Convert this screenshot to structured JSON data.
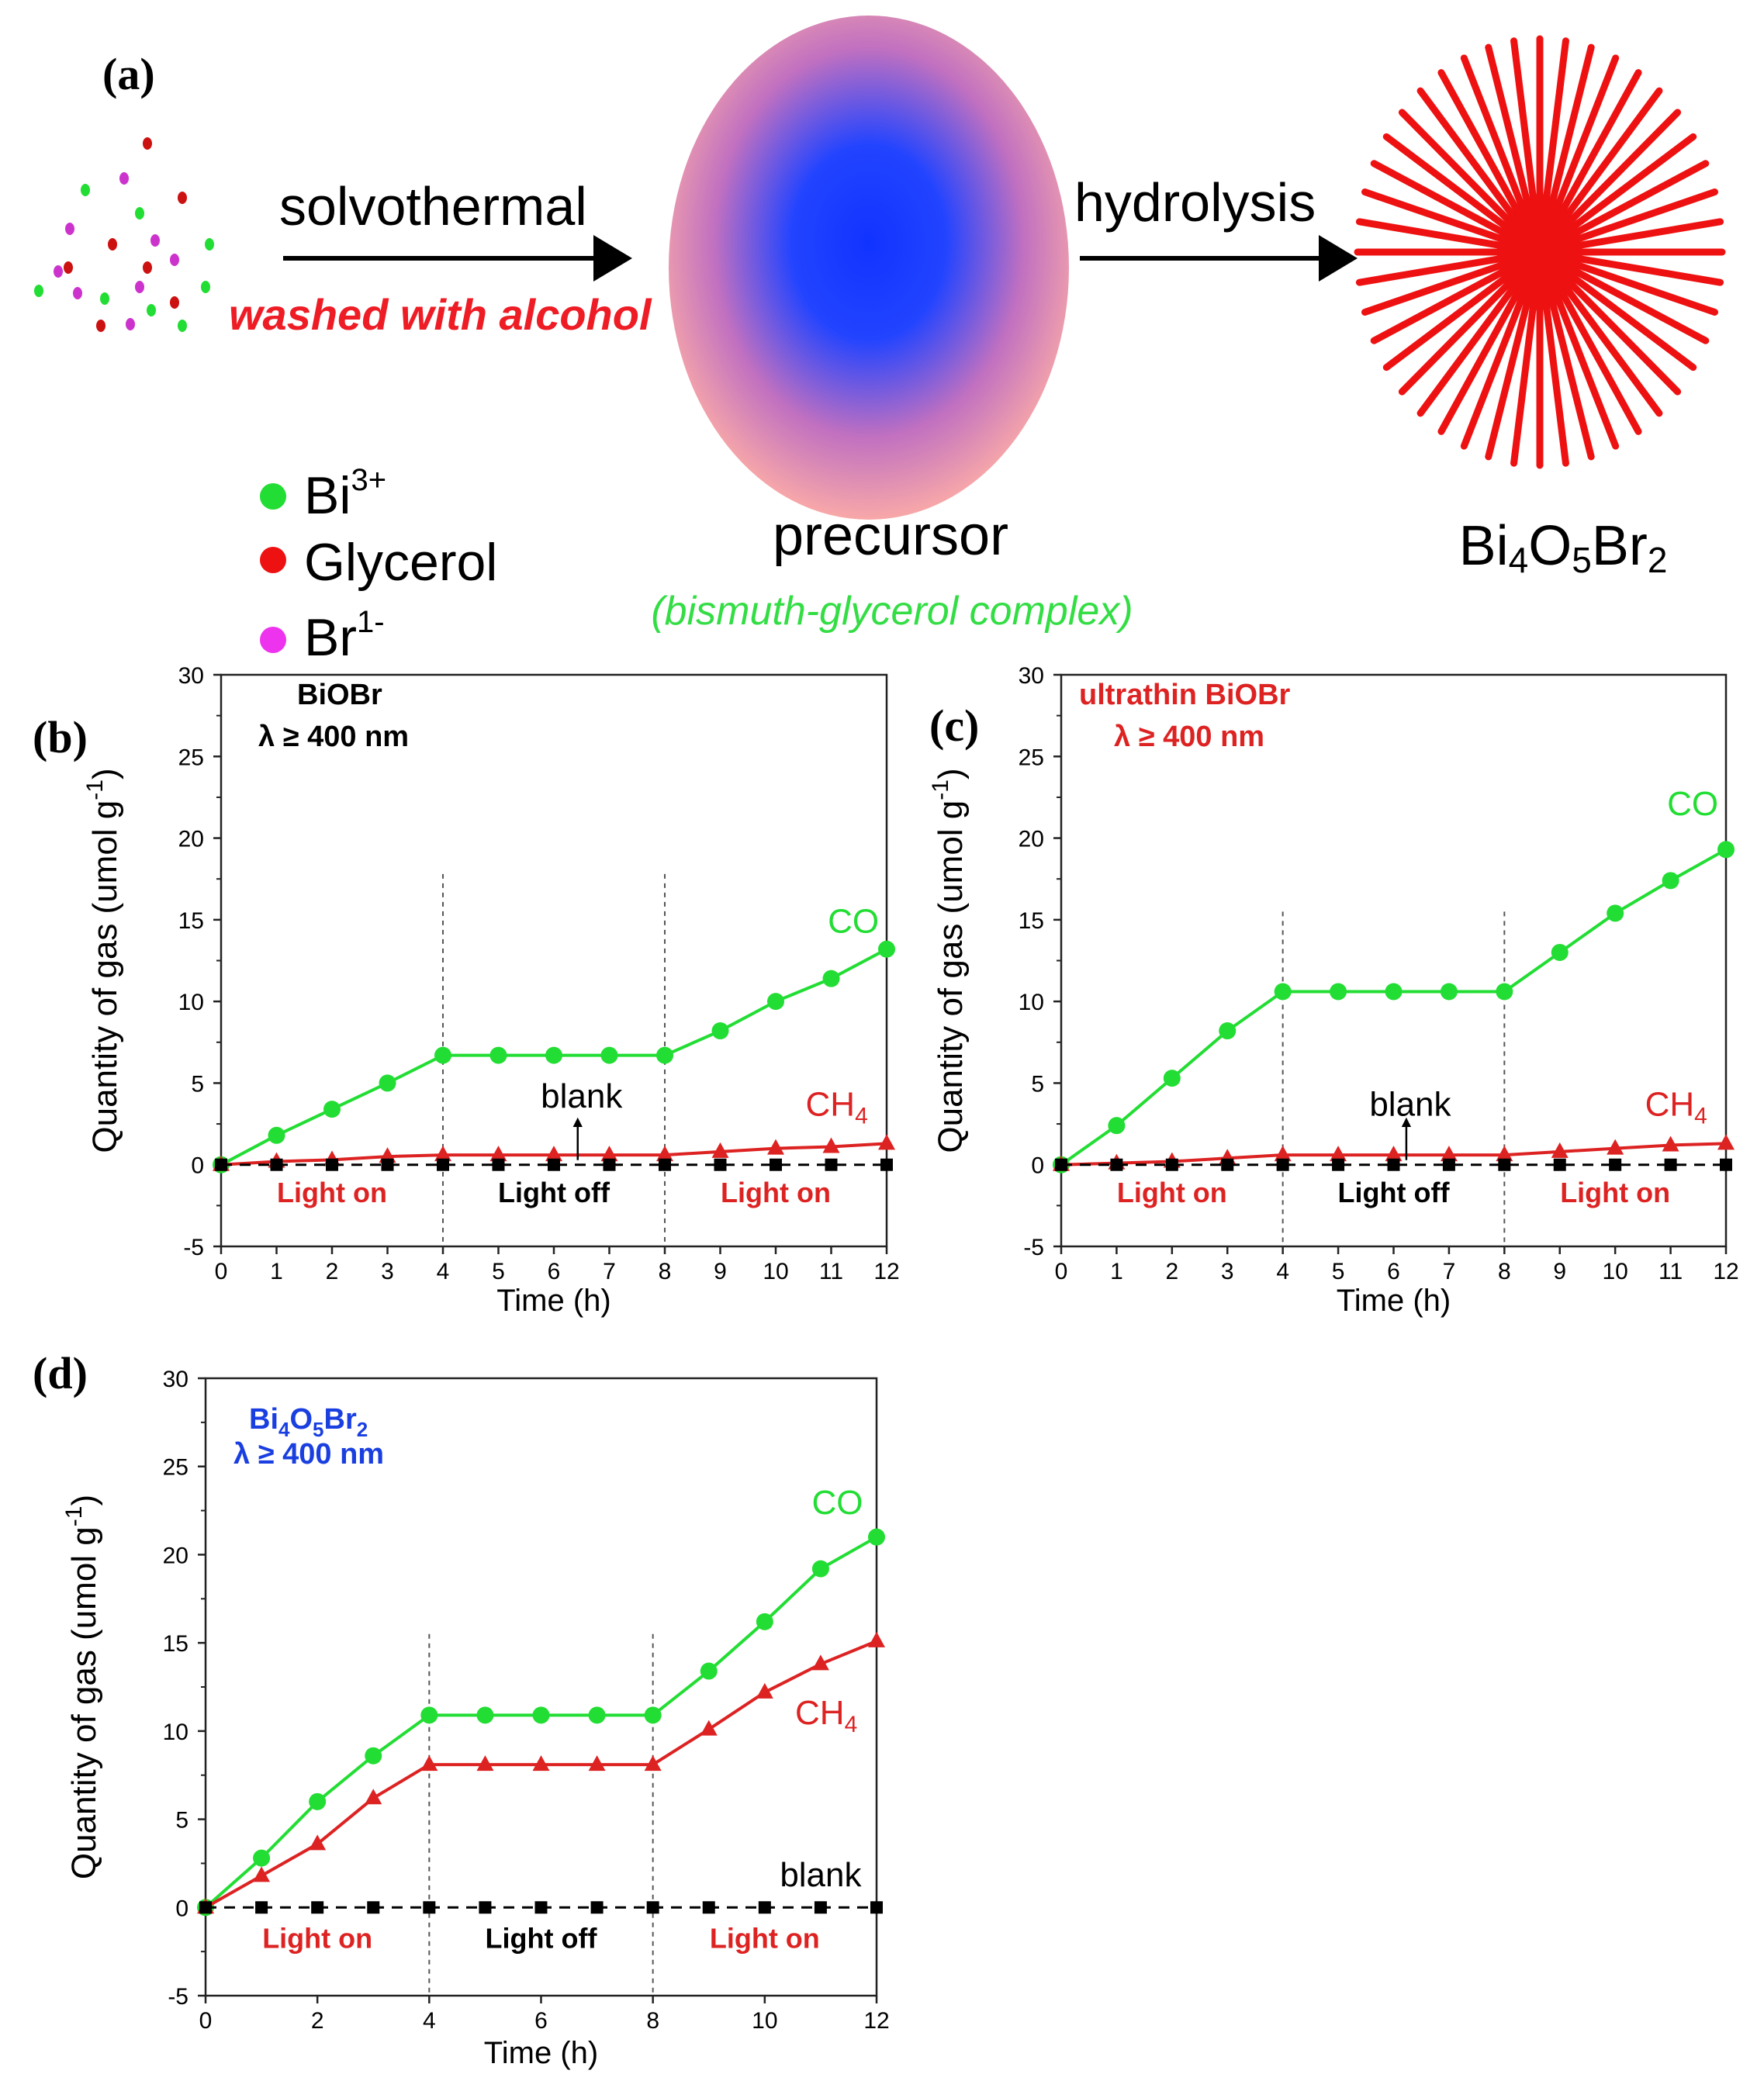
{
  "scheme": {
    "panel_label": "(a)",
    "step1_label": "solvothermal",
    "step1_note": "washed with alcohol",
    "step2_label": "hydrolysis",
    "precursor_label": "precursor",
    "precursor_note": "(bismuth-glycerol complex)",
    "product_label": "Bi4O5Br2",
    "product_parts": [
      "Bi",
      "4",
      "O",
      "5",
      "Br",
      "2"
    ],
    "legend": [
      {
        "base": "Bi",
        "sup": "3+",
        "color": "#22dd33"
      },
      {
        "base": "Glycerol",
        "sup": "",
        "color": "#ee1111"
      },
      {
        "base": "Br",
        "sup": "1-",
        "color": "#ee33ee"
      }
    ],
    "colors": {
      "bi": "#22dd33",
      "glycerol": "#cc1111",
      "br": "#cc33cc",
      "star": "#ee1111",
      "precursor_core": "#1133ff",
      "precursor_edge": "#f5a0a0"
    }
  },
  "chart_data": [
    {
      "id": "b",
      "type": "line",
      "panel_label": "(b)",
      "title": "BiOBr",
      "subtitle": "λ  ≥  400 nm",
      "title_color": "#000000",
      "xlabel": "Time (h)",
      "ylabel": "Quantity of gas (umol g-1)",
      "ylabel_base": "Quantity of gas (umol g",
      "ylabel_sup": "-1",
      "xlim": [
        0,
        12
      ],
      "ylim": [
        -5,
        30
      ],
      "x_ticks": [
        0,
        1,
        2,
        3,
        4,
        5,
        6,
        7,
        8,
        9,
        10,
        11,
        12
      ],
      "y_ticks": [
        -5,
        0,
        5,
        10,
        15,
        20,
        25,
        30
      ],
      "x": [
        0,
        1,
        2,
        3,
        4,
        5,
        6,
        7,
        8,
        9,
        10,
        11,
        12
      ],
      "series": [
        {
          "name": "CO",
          "color": "#22dd33",
          "marker": "circle",
          "values": [
            0,
            1.8,
            3.4,
            5.0,
            6.7,
            6.7,
            6.7,
            6.7,
            6.7,
            8.2,
            10.0,
            11.4,
            13.2
          ]
        },
        {
          "name": "CH4",
          "color": "#dd2222",
          "marker": "triangle",
          "values": [
            0,
            0.2,
            0.3,
            0.5,
            0.6,
            0.6,
            0.6,
            0.6,
            0.6,
            0.8,
            1.0,
            1.1,
            1.3
          ]
        },
        {
          "name": "blank",
          "color": "#000000",
          "marker": "square",
          "dashed": true,
          "values": [
            0,
            0,
            0,
            0,
            0,
            0,
            0,
            0,
            0,
            0,
            0,
            0,
            0
          ]
        }
      ],
      "labels": {
        "co": "CO",
        "ch4_base": "CH",
        "ch4_sub": "4",
        "blank": "blank"
      },
      "label_positions": {
        "co": [
          11.4,
          14.2
        ],
        "ch4": [
          11.1,
          3.0
        ],
        "blank": [
          6.5,
          3.5
        ]
      },
      "blank_arrow": true,
      "dividers": [
        4,
        8
      ],
      "periods": [
        {
          "text": "Light on",
          "x": 2,
          "color": "#dd2222"
        },
        {
          "text": "Light off",
          "x": 6,
          "color": "#000000"
        },
        {
          "text": "Light on",
          "x": 10,
          "color": "#dd2222"
        }
      ]
    },
    {
      "id": "c",
      "type": "line",
      "panel_label": "(c)",
      "title": "ultrathin BiOBr",
      "subtitle": "λ  ≥  400 nm",
      "title_color": "#dd2222",
      "xlabel": "Time (h)",
      "ylabel": "Quantity of gas (umol g-1)",
      "ylabel_base": "Quantity of gas (umol g",
      "ylabel_sup": "-1",
      "xlim": [
        0,
        12
      ],
      "ylim": [
        -5,
        30
      ],
      "x_ticks": [
        0,
        1,
        2,
        3,
        4,
        5,
        6,
        7,
        8,
        9,
        10,
        11,
        12
      ],
      "y_ticks": [
        -5,
        0,
        5,
        10,
        15,
        20,
        25,
        30
      ],
      "x": [
        0,
        1,
        2,
        3,
        4,
        5,
        6,
        7,
        8,
        9,
        10,
        11,
        12
      ],
      "series": [
        {
          "name": "CO",
          "color": "#22dd33",
          "marker": "circle",
          "values": [
            0,
            2.4,
            5.3,
            8.2,
            10.6,
            10.6,
            10.6,
            10.6,
            10.6,
            13.0,
            15.4,
            17.4,
            19.3
          ]
        },
        {
          "name": "CH4",
          "color": "#dd2222",
          "marker": "triangle",
          "values": [
            0,
            0.1,
            0.2,
            0.4,
            0.6,
            0.6,
            0.6,
            0.6,
            0.6,
            0.8,
            1.0,
            1.2,
            1.3
          ]
        },
        {
          "name": "blank",
          "color": "#000000",
          "marker": "square",
          "dashed": true,
          "values": [
            0,
            0,
            0,
            0,
            0,
            0,
            0,
            0,
            0,
            0,
            0,
            0,
            0
          ]
        }
      ],
      "labels": {
        "co": "CO",
        "ch4_base": "CH",
        "ch4_sub": "4",
        "blank": "blank"
      },
      "label_positions": {
        "co": [
          11.4,
          21.4
        ],
        "ch4": [
          11.1,
          3.0
        ],
        "blank": [
          6.3,
          3.0
        ]
      },
      "blank_arrow": true,
      "dividers": [
        4,
        8
      ],
      "periods": [
        {
          "text": "Light on",
          "x": 2,
          "color": "#dd2222"
        },
        {
          "text": "Light off",
          "x": 6,
          "color": "#000000"
        },
        {
          "text": "Light on",
          "x": 10,
          "color": "#dd2222"
        }
      ]
    },
    {
      "id": "d",
      "type": "line",
      "panel_label": "(d)",
      "title": "Bi4O5Br2",
      "title_parts": [
        "Bi",
        "4",
        "O",
        "5",
        "Br",
        "2"
      ],
      "subtitle": "λ  ≥  400 nm",
      "title_color": "#1a3fe0",
      "xlabel": "Time (h)",
      "ylabel": "Quantity of gas (umol g-1)",
      "ylabel_base": "Quantity of gas (umol g",
      "ylabel_sup": "-1",
      "xlim": [
        0,
        12
      ],
      "ylim": [
        -5,
        30
      ],
      "x_ticks": [
        0,
        2,
        4,
        6,
        8,
        10,
        12
      ],
      "y_ticks": [
        -5,
        0,
        5,
        10,
        15,
        20,
        25,
        30
      ],
      "x": [
        0,
        1,
        2,
        3,
        4,
        5,
        6,
        7,
        8,
        9,
        10,
        11,
        12
      ],
      "series": [
        {
          "name": "CO",
          "color": "#22dd33",
          "marker": "circle",
          "values": [
            0,
            2.8,
            6.0,
            8.6,
            10.9,
            10.9,
            10.9,
            10.9,
            10.9,
            13.4,
            16.2,
            19.2,
            21.0
          ]
        },
        {
          "name": "CH4",
          "color": "#dd2222",
          "marker": "triangle",
          "values": [
            0,
            1.8,
            3.6,
            6.2,
            8.1,
            8.1,
            8.1,
            8.1,
            8.1,
            10.1,
            12.2,
            13.8,
            15.1
          ]
        },
        {
          "name": "blank",
          "color": "#000000",
          "marker": "square",
          "dashed": true,
          "values": [
            0,
            0,
            0,
            0,
            0,
            0,
            0,
            0,
            0,
            0,
            0,
            0,
            0
          ]
        }
      ],
      "labels": {
        "co": "CO",
        "ch4_base": "CH",
        "ch4_sub": "4",
        "blank": "blank"
      },
      "label_positions": {
        "co": [
          11.3,
          22.3
        ],
        "ch4": [
          11.1,
          10.4
        ],
        "blank": [
          11.0,
          1.2
        ]
      },
      "blank_arrow": false,
      "dividers": [
        4,
        8
      ],
      "periods": [
        {
          "text": "Light on",
          "x": 2,
          "color": "#dd2222"
        },
        {
          "text": "Light off",
          "x": 6,
          "color": "#000000"
        },
        {
          "text": "Light on",
          "x": 10,
          "color": "#dd2222"
        }
      ]
    }
  ]
}
